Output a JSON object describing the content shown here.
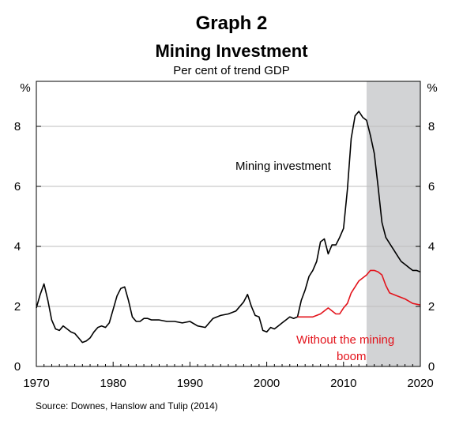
{
  "title": "Graph 2",
  "subtitle": "Mining Investment",
  "units": "Per cent of trend GDP",
  "source": "Source: Downes, Hanslow and Tulip (2014)",
  "chart_data": {
    "type": "line",
    "title": "Mining Investment",
    "ylabel_left": "%",
    "ylabel_right": "%",
    "xlim": [
      1970,
      2020
    ],
    "ylim": [
      0,
      9.5
    ],
    "x_ticks": [
      1970,
      1980,
      1990,
      2000,
      2010,
      2020
    ],
    "x_tick_labels": [
      "1970",
      "1980",
      "1990",
      "2000",
      "2010",
      "2020"
    ],
    "y_ticks": [
      0,
      2,
      4,
      6,
      8
    ],
    "y_tick_labels": [
      "0",
      "2",
      "4",
      "6",
      "8"
    ],
    "grid": "horizontal",
    "shaded_region": {
      "from": 2013,
      "to": 2020,
      "color": "#d2d3d5"
    },
    "annotations": [
      {
        "text": "Mining investment",
        "series": "Mining investment"
      },
      {
        "text": "Without the mining",
        "series": "Without the mining boom"
      },
      {
        "text": "boom",
        "series": "Without the mining boom"
      }
    ],
    "series": [
      {
        "name": "Mining investment",
        "color": "#000000",
        "x": [
          1970,
          1970.5,
          1971,
          1971.5,
          1972,
          1972.5,
          1973,
          1973.5,
          1974,
          1974.5,
          1975,
          1975.5,
          1976,
          1976.5,
          1977,
          1977.5,
          1978,
          1978.5,
          1979,
          1979.5,
          1980,
          1980.5,
          1981,
          1981.5,
          1982,
          1982.5,
          1983,
          1983.5,
          1984,
          1984.5,
          1985,
          1986,
          1987,
          1988,
          1989,
          1990,
          1991,
          1992,
          1993,
          1994,
          1995,
          1996,
          1997,
          1997.5,
          1998,
          1998.5,
          1999,
          1999.5,
          2000,
          2000.5,
          2001,
          2001.5,
          2002,
          2002.5,
          2003,
          2003.5,
          2004,
          2004.5,
          2005,
          2005.5,
          2006,
          2006.5,
          2007,
          2007.5,
          2008,
          2008.5,
          2009,
          2009.5,
          2010,
          2010.5,
          2011,
          2011.5,
          2012,
          2012.5,
          2013,
          2013.5,
          2014,
          2014.5,
          2015,
          2015.5,
          2016,
          2016.5,
          2017,
          2017.5,
          2018,
          2018.5,
          2019,
          2019.5,
          2020
        ],
        "y": [
          1.95,
          2.4,
          2.75,
          2.2,
          1.55,
          1.25,
          1.2,
          1.35,
          1.25,
          1.15,
          1.1,
          0.95,
          0.8,
          0.85,
          0.95,
          1.15,
          1.3,
          1.35,
          1.3,
          1.45,
          1.9,
          2.35,
          2.6,
          2.65,
          2.2,
          1.65,
          1.5,
          1.5,
          1.6,
          1.6,
          1.55,
          1.55,
          1.5,
          1.5,
          1.45,
          1.5,
          1.35,
          1.3,
          1.6,
          1.7,
          1.75,
          1.85,
          2.15,
          2.4,
          2.0,
          1.7,
          1.65,
          1.2,
          1.15,
          1.3,
          1.25,
          1.35,
          1.45,
          1.55,
          1.65,
          1.6,
          1.65,
          2.2,
          2.55,
          3.0,
          3.2,
          3.5,
          4.15,
          4.25,
          3.75,
          4.05,
          4.05,
          4.3,
          4.6,
          5.9,
          7.6,
          8.35,
          8.5,
          8.3,
          8.2,
          7.7,
          7.1,
          6.0,
          4.8,
          4.3,
          4.1,
          3.9,
          3.7,
          3.5,
          3.4,
          3.3,
          3.2,
          3.2,
          3.15
        ]
      },
      {
        "name": "Without the mining boom",
        "color": "#e3131b",
        "x": [
          2004,
          2005,
          2006,
          2007,
          2008,
          2009,
          2009.5,
          2010,
          2010.5,
          2011,
          2012,
          2013,
          2013.5,
          2014,
          2014.5,
          2015,
          2015.5,
          2016,
          2017,
          2018,
          2019,
          2020
        ],
        "y": [
          1.65,
          1.65,
          1.65,
          1.75,
          1.95,
          1.75,
          1.75,
          1.95,
          2.1,
          2.45,
          2.85,
          3.05,
          3.2,
          3.2,
          3.15,
          3.05,
          2.7,
          2.45,
          2.35,
          2.25,
          2.1,
          2.05
        ]
      }
    ]
  }
}
